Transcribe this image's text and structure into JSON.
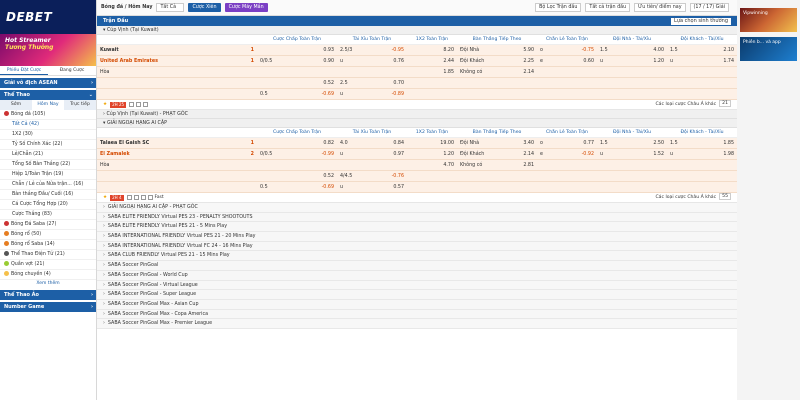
{
  "logo": {
    "brand": "DEBET"
  },
  "promo": {
    "line1": "Hot Streamer",
    "line2": "Tương Thưởng",
    "line3": ""
  },
  "sidebar": {
    "tabs": [
      "Phiếu Đặt Cược",
      "Đang Cược"
    ],
    "asean": "Giải vô địch ASEAN",
    "sports_title": "Thể Thao",
    "sport_tabs": [
      "Sớm",
      "Hôm Nay",
      "Trực tiếp"
    ],
    "soccer": "Bóng đá (105)",
    "sub_items": [
      "Tất Cả (42)",
      "1X2 (30)",
      "Tỷ Số Chính Xác (22)",
      "Lẻ/Chẵn (21)",
      "Tổng Số Bàn Thắng (22)",
      "Hiệp 1/Toàn Trận (19)",
      "Chẵn / Lẻ của Nửa trận... (16)",
      "Bàn thắng Đầu/ Cuối (16)",
      "Cá Cược Tổng Hợp (20)",
      "Cược Thắng (83)"
    ],
    "other_sports": [
      "Bóng Đá Saba (27)",
      "Bóng rổ (50)",
      "Bóng rổ Saba (14)",
      "Thể Thao Điện Tử (21)",
      "Quần vợt (21)",
      "Bóng chuyền (4)"
    ],
    "more": "Xem thêm",
    "section_virtual": "Thể Thao Ảo",
    "section_number": "Number Game"
  },
  "toolbar": {
    "sport": "Bóng đá / Hôm Nay",
    "filter": "Tất Cả",
    "btn_view": "Cược Xiên",
    "btn_quick": "Cược Máy Mắn",
    "league_filter": "Bộ Lọc Trận đấu",
    "all_leagues": "Tất cả trận đấu",
    "sort": "Ưu tiên/ điểm nay",
    "time": "(17 / 17) Giải"
  },
  "section_title": "Trận Đấu",
  "top_sort": "Lựa chọn sinh thường",
  "headers": [
    "",
    "Cược Chấp Toàn Trận",
    "Tài Xỉu Toàn Trận",
    "1X2 Toàn Trận",
    "Bàn Thắng Tiếp Theo",
    "Chẵn Lẻ Toàn Trận",
    "Đội Nhà - Tài/Xỉu",
    "Đội Khách - Tài/Xỉu"
  ],
  "match1": {
    "league": "Cúp Vịnh (Tại Kuwait)",
    "home": "Kuwait",
    "home_score": "1",
    "away": "United Arab Emirates",
    "away_score": "1",
    "draw": "Hòa",
    "r1": [
      "",
      "0.93",
      "2.5/3",
      "-0.95",
      "8.20",
      "Đội Nhà",
      "5.90",
      "o",
      "-0.75",
      "1.5",
      "4.00",
      "1.5",
      "2.10"
    ],
    "r2": [
      "0/0.5",
      "0.90",
      "u",
      "0.76",
      "2.44",
      "Đội Khách",
      "2.25",
      "e",
      "0.60",
      "u",
      "1.20",
      "u",
      "1.74"
    ],
    "r3": [
      "1.85",
      "Không có",
      "2.14"
    ],
    "r4": [
      "0.52",
      "2.5",
      "0.70"
    ],
    "r5": [
      "0.5",
      "-0.69",
      "u",
      "-0.89"
    ],
    "minute": "2H 25",
    "odds_type": "Các loại cược Châu Á khác",
    "count": "21"
  },
  "corner1": "Cúp Vịnh (Tại Kuwait) - PHẠT GÓC",
  "match2": {
    "league": "GIẢI NGOẠI HẠNG AI CẬP",
    "home": "Talaea El Gaish SC",
    "home_score": "1",
    "away": "El Zamalek",
    "away_score": "2",
    "draw": "Hòa",
    "r1": [
      "",
      "0.82",
      "4.0",
      "0.84",
      "19.00",
      "Đội Nhà",
      "3.40",
      "o",
      "0.77",
      "1.5",
      "2.50",
      "1.5",
      "1.85"
    ],
    "r2": [
      "0/0.5",
      "-0.99",
      "u",
      "0.97",
      "1.20",
      "Đội Khách",
      "2.14",
      "e",
      "-0.92",
      "u",
      "1.52",
      "u",
      "1.98"
    ],
    "r3": [
      "4.70",
      "Không có",
      "2.81"
    ],
    "r4": [
      "0.52",
      "4/4.5",
      "-0.76"
    ],
    "r5": [
      "0.5",
      "-0.69",
      "u",
      "0.57"
    ],
    "minute": "2H 4",
    "fast": "Fast",
    "odds_type": "Các loại cược Châu Á khác",
    "count": "55"
  },
  "leagues": [
    "GIẢI NGOẠI HẠNG AI CẬP - PHẠT GÓC",
    "SABA ELITE FRIENDLY Virtual PES 23 - PENALTY SHOOTOUTS",
    "SABA ELITE FRIENDLY Virtual PES 21 - 5 Mins Play",
    "SABA INTERNATIONAL FRIENDLY Virtual PES 21 - 20 Mins Play",
    "SABA INTERNATIONAL FRIENDLY Virtual FC 24 - 16 Mins Play",
    "SABA CLUB FRIENDLY Virtual PES 21 - 15 Mins Play",
    "SABA Soccer PinGoal",
    "SABA Soccer PinGoal - World Cup",
    "SABA Soccer PinGoal - Virtual League",
    "SABA Soccer PinGoal - Super League",
    "SABA Soccer PinGoal Max - Asian Cup",
    "SABA Soccer PinGoal Max - Copa America",
    "SABA Soccer PinGoal Max - Premier League"
  ],
  "ads": {
    "a1": "Vipwinning",
    "a2": "Phiên b... và app"
  },
  "colors": {
    "primary": "#1d5fa6",
    "highlight": "#fdf0e6",
    "accent": "#d44a00"
  }
}
